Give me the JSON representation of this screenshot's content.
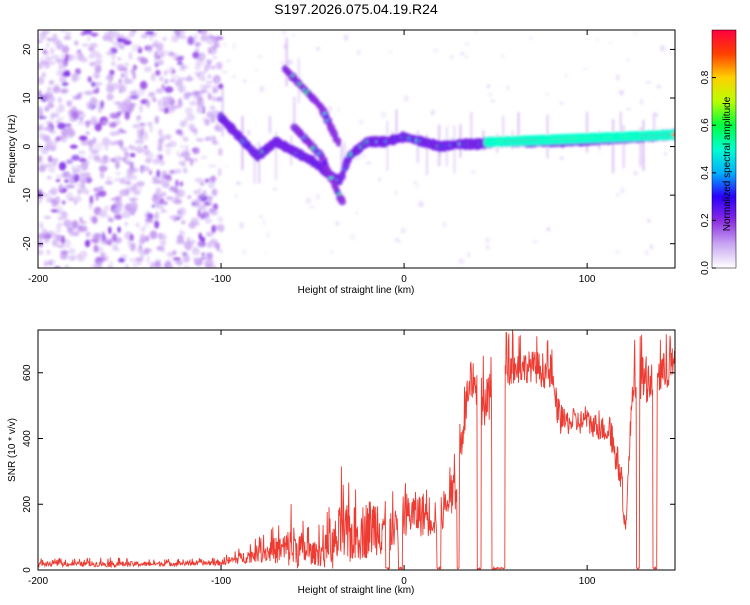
{
  "title": "S197.2026.075.04.19.R24",
  "colors": {
    "snr_line": "#ee3b32",
    "axis": "#000000",
    "background": "#ffffff"
  },
  "chart_data": [
    {
      "type": "heatmap",
      "name": "spectrogram",
      "xlabel": "Height of straight line (km)",
      "ylabel": "Frequency (Hz)",
      "xlim": [
        -200,
        148
      ],
      "ylim": [
        -25,
        24
      ],
      "xticks": [
        -200,
        -100,
        0,
        100
      ],
      "xtick_labels": [
        "-200",
        "-100",
        "0",
        "100"
      ],
      "yticks": [
        -20,
        -10,
        0,
        10,
        20
      ],
      "ytick_labels": [
        "-20",
        "-10",
        "0",
        "10",
        "20"
      ],
      "colorbar": {
        "label": "Normalized spectral amplitude",
        "range": [
          0,
          1
        ],
        "ticks": [
          0.0,
          0.2,
          0.4,
          0.6,
          0.8
        ],
        "tick_labels": [
          "0.0",
          "0.2",
          "0.4",
          "0.6",
          "0.8"
        ],
        "colormap": [
          "#ffffff",
          "#c9a6f2",
          "#8a2be2",
          "#2a00ff",
          "#00b0ff",
          "#00ffd0",
          "#00ff40",
          "#b8ff00",
          "#ffd000",
          "#ff4000",
          "#ff0040"
        ]
      },
      "description_points": {
        "noise_region_x": [
          -200,
          -100
        ],
        "main_track": [
          [
            -100,
            6
          ],
          [
            -90,
            2
          ],
          [
            -80,
            -2
          ],
          [
            -70,
            1
          ],
          [
            -60,
            -1
          ],
          [
            -50,
            -3
          ],
          [
            -40,
            -6
          ],
          [
            -35,
            -7
          ],
          [
            -30,
            -2
          ],
          [
            -20,
            1
          ],
          [
            -10,
            1
          ],
          [
            0,
            2
          ],
          [
            10,
            1
          ],
          [
            20,
            0
          ],
          [
            30,
            0.5
          ],
          [
            40,
            0.5
          ],
          [
            50,
            1
          ],
          [
            70,
            1
          ],
          [
            90,
            1
          ],
          [
            110,
            1.5
          ],
          [
            130,
            2
          ],
          [
            148,
            2.5
          ]
        ],
        "upper_branch": [
          [
            -65,
            16
          ],
          [
            -55,
            12
          ],
          [
            -45,
            8
          ],
          [
            -40,
            4
          ],
          [
            -35,
            0
          ]
        ],
        "lower_branch": [
          [
            -60,
            4
          ],
          [
            -45,
            -2
          ],
          [
            -38,
            -8
          ],
          [
            -33,
            -12
          ]
        ],
        "bright_band_x": [
          45,
          148
        ]
      }
    },
    {
      "type": "line",
      "name": "snr",
      "xlabel": "Height of straight line (km)",
      "ylabel": "SNR (10 * v/v)",
      "xlim": [
        -200,
        148
      ],
      "ylim": [
        0,
        730
      ],
      "xticks": [
        -200,
        -100,
        0,
        100
      ],
      "xtick_labels": [
        "-200",
        "-100",
        "0",
        "100"
      ],
      "yticks": [
        0,
        200,
        400,
        600
      ],
      "ytick_labels": [
        "0",
        "200",
        "400",
        "600"
      ],
      "envelope": [
        [
          -200,
          18,
          10,
          35
        ],
        [
          -180,
          18,
          10,
          35
        ],
        [
          -160,
          18,
          10,
          40
        ],
        [
          -140,
          18,
          10,
          35
        ],
        [
          -120,
          20,
          12,
          35
        ],
        [
          -100,
          22,
          12,
          40
        ],
        [
          -90,
          35,
          15,
          70
        ],
        [
          -80,
          50,
          15,
          100
        ],
        [
          -70,
          60,
          15,
          150
        ],
        [
          -60,
          70,
          10,
          240
        ],
        [
          -50,
          50,
          10,
          120
        ],
        [
          -40,
          60,
          0,
          200
        ],
        [
          -35,
          100,
          0,
          330
        ],
        [
          -25,
          110,
          0,
          280
        ],
        [
          -15,
          140,
          0,
          320
        ],
        [
          -10,
          150,
          0,
          420
        ],
        [
          -5,
          120,
          30,
          230
        ],
        [
          0,
          170,
          60,
          280
        ],
        [
          10,
          170,
          40,
          270
        ],
        [
          20,
          160,
          30,
          230
        ],
        [
          28,
          250,
          150,
          370
        ],
        [
          35,
          550,
          450,
          650
        ],
        [
          45,
          500,
          380,
          660
        ],
        [
          55,
          610,
          560,
          730
        ],
        [
          70,
          620,
          570,
          730
        ],
        [
          80,
          600,
          530,
          730
        ],
        [
          85,
          450,
          380,
          510
        ],
        [
          100,
          450,
          370,
          500
        ],
        [
          112,
          420,
          350,
          480
        ],
        [
          118,
          300,
          200,
          380
        ],
        [
          121,
          120,
          100,
          160
        ],
        [
          125,
          580,
          500,
          730
        ],
        [
          135,
          580,
          480,
          720
        ],
        [
          142,
          600,
          520,
          730
        ],
        [
          148,
          630,
          560,
          730
        ]
      ],
      "dropouts": [
        [
          -10,
          -8
        ],
        [
          -3,
          -1
        ],
        [
          18,
          20
        ],
        [
          29,
          30
        ],
        [
          40,
          42
        ],
        [
          48,
          55
        ],
        [
          127,
          128.5
        ],
        [
          136,
          138
        ]
      ]
    }
  ]
}
